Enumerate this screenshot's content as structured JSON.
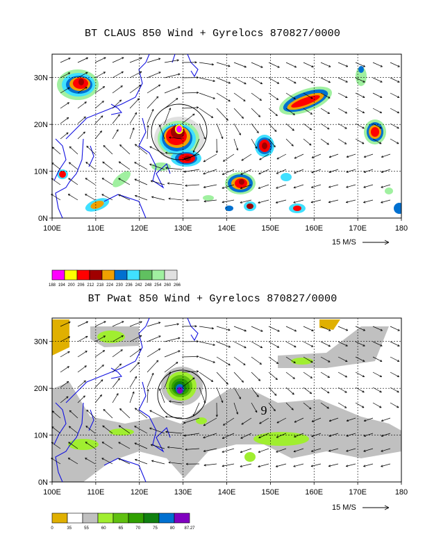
{
  "panels": [
    {
      "title": "BT CLAUS 850 Wind + Gyrelocs 870827/0000",
      "lat_labels": [
        "0N",
        "10N",
        "20N",
        "30N"
      ],
      "lon_labels": [
        "100E",
        "110E",
        "120E",
        "130E",
        "140E",
        "150E",
        "160E",
        "170E",
        "180"
      ],
      "wind_scale_label": "15 M/S",
      "colorbar": {
        "colors": [
          "#ff00ff",
          "#ffff00",
          "#ff0000",
          "#a00000",
          "#f0a000",
          "#0070d0",
          "#40e0ff",
          "#60c060",
          "#a0f0a0",
          "#e0e0e0"
        ],
        "labels": [
          "188",
          "194",
          "200",
          "206",
          "212",
          "218",
          "224",
          "230",
          "236",
          "242",
          "248",
          "254",
          "260",
          "266"
        ]
      }
    },
    {
      "title": "BT Pwat 850 Wind + Gyrelocs 870827/0000",
      "lat_labels": [
        "0N",
        "10N",
        "20N",
        "30N"
      ],
      "lon_labels": [
        "100E",
        "110E",
        "120E",
        "130E",
        "140E",
        "150E",
        "160E",
        "170E",
        "180"
      ],
      "wind_scale_label": "15 M/S",
      "cyclone_symbol": "9",
      "colorbar": {
        "colors": [
          "#e0b000",
          "#ffffff",
          "#c0c0c0",
          "#a0ee30",
          "#60c010",
          "#30a000",
          "#108010",
          "#0070d0",
          "#8000c0"
        ],
        "labels": [
          "0",
          "35",
          "55",
          "60",
          "65",
          "70",
          "75",
          "80",
          "87.27"
        ]
      }
    }
  ]
}
